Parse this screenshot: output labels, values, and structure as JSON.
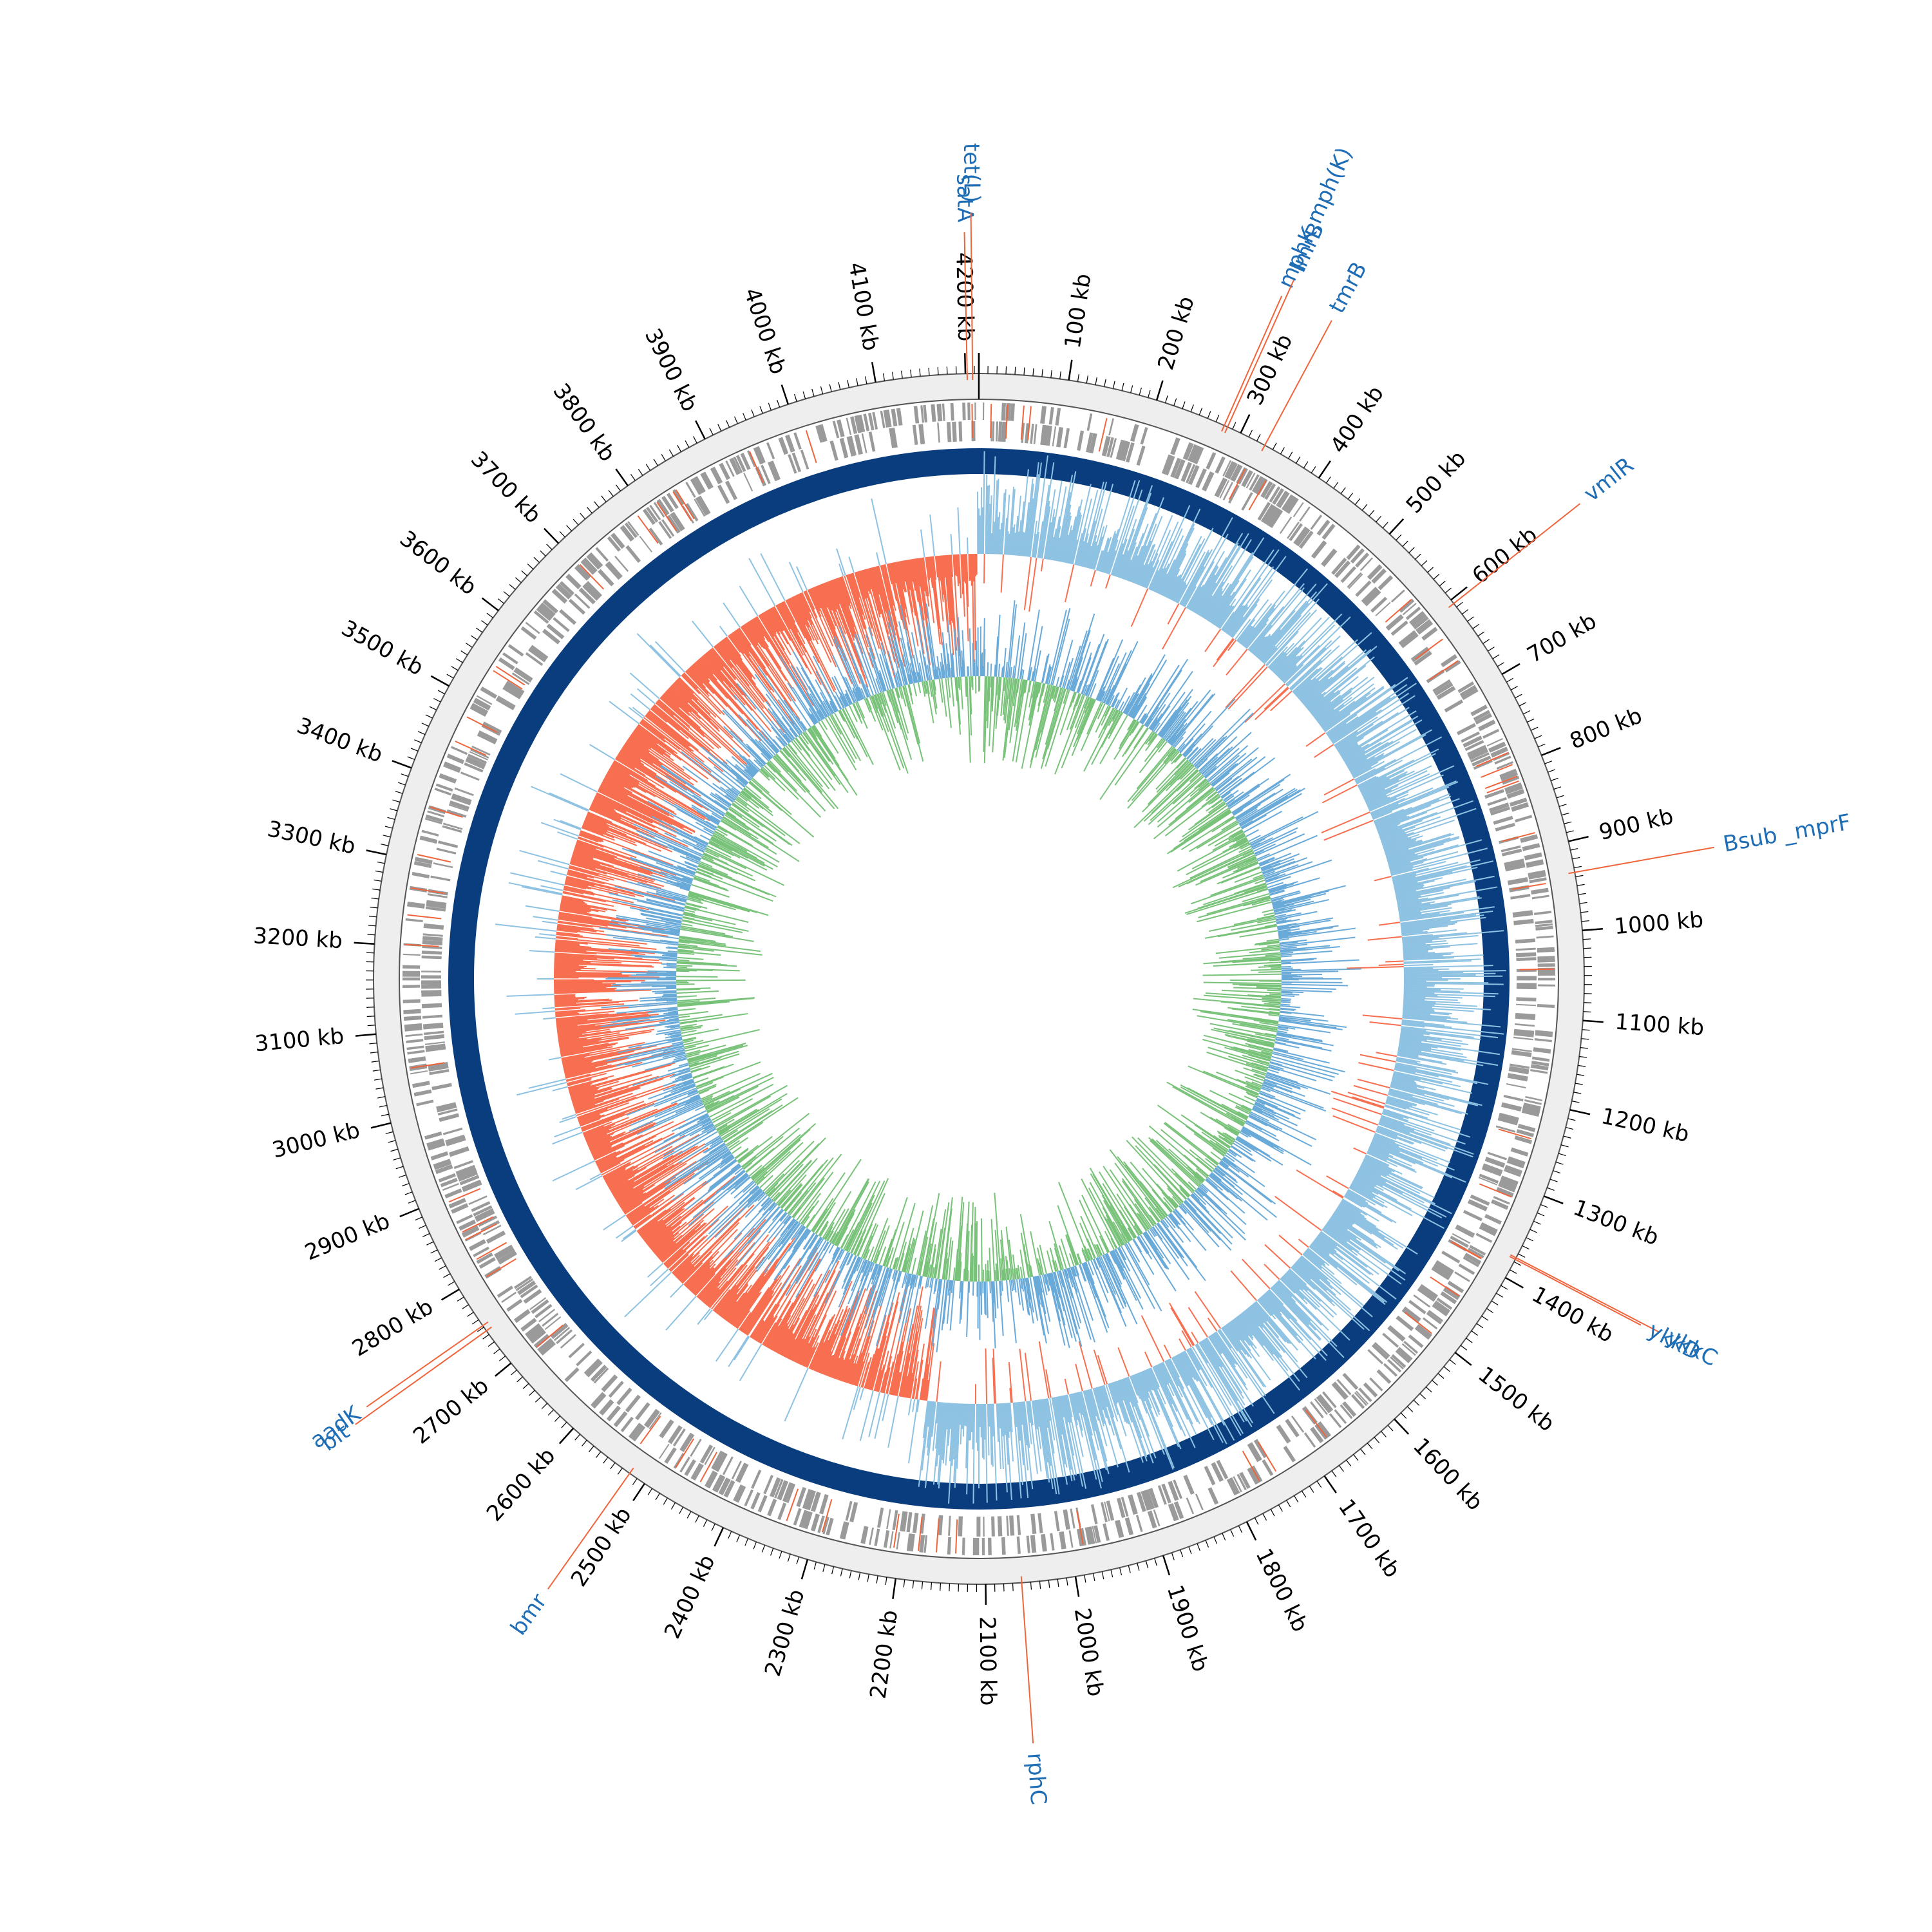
{
  "map": {
    "genome_length_kb": 4215,
    "tick_labels": [
      "100 kb",
      "200 kb",
      "300 kb",
      "400 kb",
      "500 kb",
      "600 kb",
      "700 kb",
      "800 kb",
      "900 kb",
      "1000 kb",
      "1100 kb",
      "1200 kb",
      "1300 kb",
      "1400 kb",
      "1500 kb",
      "1600 kb",
      "1700 kb",
      "1800 kb",
      "1900 kb",
      "2000 kb",
      "2100 kb",
      "2200 kb",
      "2300 kb",
      "2400 kb",
      "2500 kb",
      "2600 kb",
      "2700 kb",
      "2800 kb",
      "2900 kb",
      "3000 kb",
      "3100 kb",
      "3200 kb",
      "3300 kb",
      "3400 kb",
      "3500 kb",
      "3600 kb",
      "3700 kb",
      "3800 kb",
      "3900 kb",
      "4000 kb",
      "4100 kb",
      "4200 kb"
    ],
    "gene_labels": [
      {
        "text": "satA",
        "position_kb": 4202
      },
      {
        "text": "tet(L)",
        "position_kb": 4208
      },
      {
        "text": "mphK,mph(K)",
        "position_kb": 280
      },
      {
        "text": "lmrB",
        "position_kb": 284
      },
      {
        "text": "tmrB",
        "position_kb": 330
      },
      {
        "text": "vmlR",
        "position_kb": 605
      },
      {
        "text": "Bsub _mprF",
        "position_kb": 935
      },
      {
        "text": "ykkC",
        "position_kb": 1375
      },
      {
        "text": "ykkD",
        "position_kb": 1377
      },
      {
        "text": "rphC",
        "position_kb": 2060
      },
      {
        "text": "bmr",
        "position_kb": 2520
      },
      {
        "text": "blt",
        "position_kb": 2745
      },
      {
        "text": "aadK",
        "position_kb": 2752
      }
    ],
    "colors": {
      "backbone": "#0a3d7e",
      "gene_ticks": "#9a9a9a",
      "highlight": "#f0643c",
      "gc_positive": "#8ec2e2",
      "gc_negative": "#f76f50",
      "skew_blue": "#6aaad8",
      "skew_green": "#79c27a",
      "label_blue": "#1f6db5",
      "ruler_band": "#eeeeee"
    }
  }
}
